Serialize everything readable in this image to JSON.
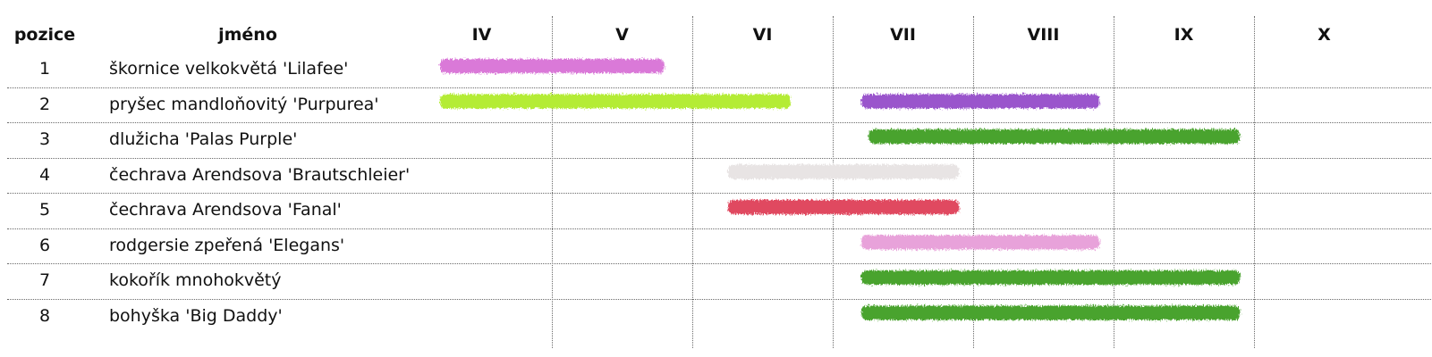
{
  "columns": {
    "position": "pozice",
    "name": "jméno"
  },
  "chart_data": {
    "type": "table",
    "months": [
      "IV",
      "V",
      "VI",
      "VII",
      "VIII",
      "IX",
      "X"
    ],
    "rows": [
      {
        "pozice": "1",
        "jmeno": "škornice velkokvětá 'Lilafee'",
        "start": 0.0,
        "end": 1.8,
        "color": "#da79d8"
      },
      {
        "pozice": "2",
        "jmeno": "pryšec mandloňovitý 'Purpurea'",
        "start": 0.0,
        "end": 2.7,
        "color": "#b4ec34"
      },
      {
        "pozice": "2",
        "jmeno": "pryšec mandloňovitý 'Purpurea'",
        "start": 3.0,
        "end": 4.9,
        "color": "#9a54cc"
      },
      {
        "pozice": "3",
        "jmeno": "dlužicha 'Palas Purple'",
        "start": 3.05,
        "end": 5.9,
        "color": "#4aa32e"
      },
      {
        "pozice": "4",
        "jmeno": "čechrava Arendsova 'Brautschleier'",
        "start": 2.05,
        "end": 3.9,
        "color": "#e8e4e4"
      },
      {
        "pozice": "5",
        "jmeno": "čechrava Arendsova 'Fanal'",
        "start": 2.05,
        "end": 3.9,
        "color": "#e04a60"
      },
      {
        "pozice": "6",
        "jmeno": "rodgersie zpeřená 'Elegans'",
        "start": 3.0,
        "end": 4.9,
        "color": "#e8a2da"
      },
      {
        "pozice": "7",
        "jmeno": "kokořík mnohokvětý",
        "start": 3.0,
        "end": 5.9,
        "color": "#4aa32e"
      },
      {
        "pozice": "8",
        "jmeno": "bohyška 'Big Daddy'",
        "start": 3.0,
        "end": 5.9,
        "color": "#4aa32e"
      }
    ]
  }
}
